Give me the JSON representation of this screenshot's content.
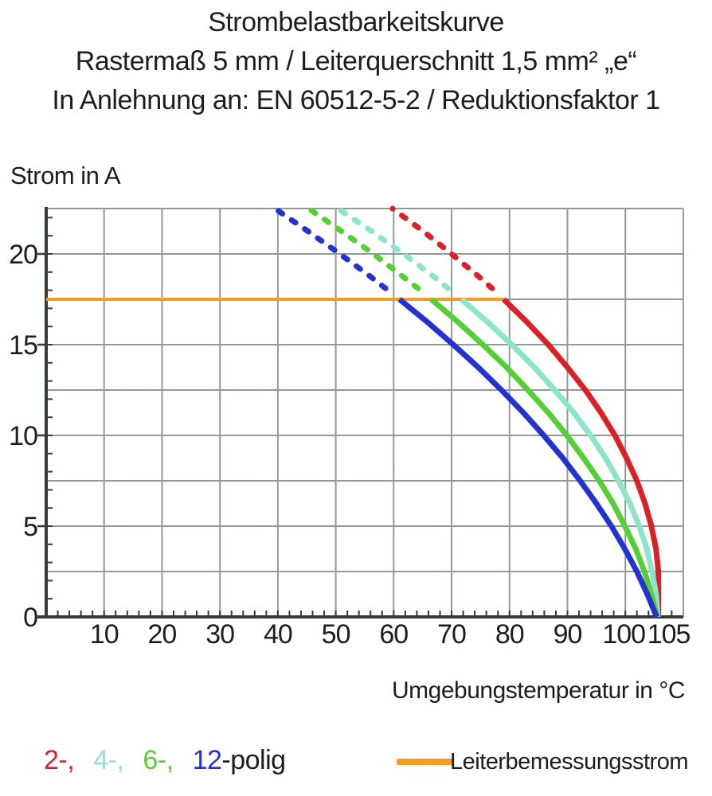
{
  "title": {
    "line1": "Strombelastbarkeitskurve",
    "line2": "Rastermaß 5 mm / Leiterquerschnitt 1,5 mm² „e“",
    "line3": "In Anlehnung an: EN 60512-5-2 / Reduktionsfaktor 1"
  },
  "y_axis_title": "Strom in A",
  "x_axis_title": "Umgebungstemperatur in °C",
  "legend": {
    "poles": [
      {
        "name": "2-polig",
        "label": "2-,",
        "color": "#d92227"
      },
      {
        "name": "4-polig",
        "label": "4-,",
        "color": "#8ce4cb"
      },
      {
        "name": "6-polig",
        "label": "6-,",
        "color": "#55cf35"
      },
      {
        "name": "12-polig",
        "label": "12",
        "color": "#2433d0"
      }
    ],
    "poles_suffix": "-polig",
    "rated_current": {
      "label": "Leiterbemessungsstrom",
      "color": "#f59c26"
    }
  },
  "chart_data": {
    "type": "line",
    "title": "Strombelastbarkeitskurve",
    "xlabel": "Umgebungstemperatur in °C",
    "ylabel": "Strom in A",
    "xlim": [
      0,
      110
    ],
    "ylim": [
      0,
      22.5
    ],
    "x_major_ticks": [
      10,
      20,
      30,
      40,
      50,
      60,
      70,
      80,
      90,
      100,
      105
    ],
    "y_major_ticks": [
      0,
      5,
      10,
      15,
      20
    ],
    "x_grid_step": 10,
    "y_grid_step": 2.5,
    "x_minor_tick_step": 2,
    "y_minor_tick_step": 1,
    "grid": true,
    "grid_color": "#8f9b9a",
    "axis_color": "#333b3b",
    "reference_line": {
      "label": "Leiterbemessungsstrom",
      "current_a": 17.5,
      "x_start": 0,
      "x_end": 79,
      "color": "#f59c26"
    },
    "series": [
      {
        "name": "2-polig",
        "color": "#d92227",
        "solid_points": [
          [
            79,
            17.5
          ],
          [
            83,
            16.25
          ],
          [
            86.7,
            15
          ],
          [
            90,
            13.75
          ],
          [
            93.1,
            12.5
          ],
          [
            95.8,
            11.25
          ],
          [
            98.2,
            10
          ],
          [
            100.2,
            8.75
          ],
          [
            102,
            7.5
          ],
          [
            103.4,
            6.25
          ],
          [
            104.5,
            5
          ],
          [
            105.3,
            3.75
          ],
          [
            105.7,
            2.5
          ],
          [
            105.7,
            1.25
          ],
          [
            105.7,
            0
          ]
        ],
        "dashed_points": [
          [
            77,
            18.1
          ],
          [
            74.7,
            18.75
          ],
          [
            70,
            20
          ],
          [
            65.1,
            21.25
          ],
          [
            59.8,
            22.5
          ]
        ]
      },
      {
        "name": "4-polig",
        "color": "#8ce4cb",
        "solid_points": [
          [
            71.7,
            17.5
          ],
          [
            76.2,
            16.25
          ],
          [
            80.4,
            15
          ],
          [
            84.3,
            13.75
          ],
          [
            87.8,
            12.5
          ],
          [
            91.1,
            11.25
          ],
          [
            94,
            10
          ],
          [
            96.6,
            8.75
          ],
          [
            98.8,
            7.5
          ],
          [
            100.8,
            6.25
          ],
          [
            102.4,
            5
          ],
          [
            103.7,
            3.75
          ],
          [
            104.6,
            2.5
          ],
          [
            105.3,
            1.25
          ],
          [
            105.6,
            0
          ]
        ],
        "dashed_points": [
          [
            69.4,
            18.1
          ],
          [
            66.9,
            18.75
          ],
          [
            61.7,
            20
          ],
          [
            56.2,
            21.25
          ],
          [
            50.4,
            22.5
          ]
        ]
      },
      {
        "name": "6-polig",
        "color": "#55cf35",
        "solid_points": [
          [
            66.5,
            17.5
          ],
          [
            71.1,
            16.25
          ],
          [
            75.4,
            15
          ],
          [
            79.5,
            13.75
          ],
          [
            83.2,
            12.5
          ],
          [
            86.7,
            11.25
          ],
          [
            89.9,
            10
          ],
          [
            92.8,
            8.75
          ],
          [
            95.5,
            7.5
          ],
          [
            97.9,
            6.25
          ],
          [
            99.9,
            5
          ],
          [
            101.8,
            3.75
          ],
          [
            103.3,
            2.5
          ],
          [
            104.5,
            1.25
          ],
          [
            105.5,
            0
          ]
        ],
        "dashed_points": [
          [
            64.2,
            18.1
          ],
          [
            61.6,
            18.75
          ],
          [
            56.5,
            20
          ],
          [
            51,
            21.25
          ],
          [
            45.3,
            22.5
          ]
        ]
      },
      {
        "name": "12-polig",
        "color": "#2433d0",
        "solid_points": [
          [
            61,
            17.5
          ],
          [
            65.8,
            16.25
          ],
          [
            70.3,
            15
          ],
          [
            74.6,
            13.75
          ],
          [
            78.6,
            12.5
          ],
          [
            82.4,
            11.25
          ],
          [
            85.9,
            10
          ],
          [
            89.2,
            8.75
          ],
          [
            92.2,
            7.5
          ],
          [
            95,
            6.25
          ],
          [
            97.6,
            5
          ],
          [
            99.9,
            3.75
          ],
          [
            102,
            2.5
          ],
          [
            103.8,
            1.25
          ],
          [
            105.4,
            0
          ]
        ],
        "dashed_points": [
          [
            58.6,
            18.1
          ],
          [
            56,
            18.75
          ],
          [
            50.7,
            20
          ],
          [
            45.2,
            21.25
          ],
          [
            39.5,
            22.5
          ]
        ]
      }
    ]
  }
}
